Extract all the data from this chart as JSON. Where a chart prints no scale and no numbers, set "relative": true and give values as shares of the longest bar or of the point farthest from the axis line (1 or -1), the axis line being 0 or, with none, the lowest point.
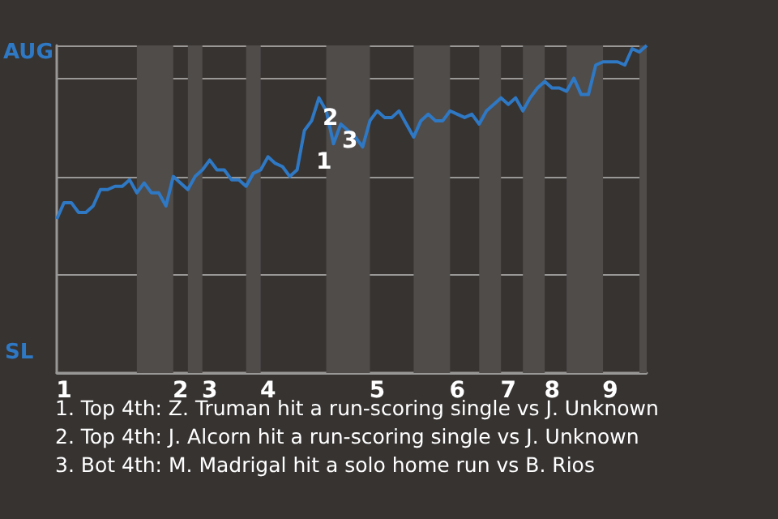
{
  "chart_data": {
    "type": "line",
    "relative": true,
    "categories": [
      null,
      "1",
      null,
      null,
      null,
      null,
      null,
      null,
      null,
      null,
      null,
      null,
      null,
      null,
      null,
      null,
      null,
      "2",
      null,
      null,
      null,
      "3",
      null,
      null,
      null,
      null,
      null,
      null,
      null,
      "4",
      null,
      null,
      null,
      null,
      null,
      null,
      null,
      null,
      null,
      null,
      null,
      null,
      null,
      null,
      "5",
      null,
      null,
      null,
      null,
      null,
      null,
      null,
      null,
      null,
      null,
      "6",
      null,
      null,
      null,
      null,
      null,
      null,
      "7",
      null,
      null,
      null,
      null,
      null,
      "8",
      null,
      null,
      null,
      null,
      null,
      null,
      null,
      "9",
      null,
      null,
      null,
      null,
      null
    ],
    "series": [
      {
        "color": "#2f78c4",
        "values": [
          0.47,
          0.52,
          0.52,
          0.49,
          0.49,
          0.51,
          0.56,
          0.56,
          0.57,
          0.57,
          0.59,
          0.55,
          0.58,
          0.55,
          0.55,
          0.51,
          0.6,
          0.58,
          0.56,
          0.6,
          0.62,
          0.65,
          0.62,
          0.62,
          0.59,
          0.59,
          0.57,
          0.61,
          0.62,
          0.66,
          0.64,
          0.63,
          0.6,
          0.62,
          0.74,
          0.77,
          0.84,
          0.8,
          0.7,
          0.76,
          0.74,
          0.72,
          0.69,
          0.77,
          0.8,
          0.78,
          0.78,
          0.8,
          0.76,
          0.72,
          0.77,
          0.79,
          0.77,
          0.77,
          0.8,
          0.79,
          0.78,
          0.79,
          0.76,
          0.8,
          0.82,
          0.84,
          0.82,
          0.84,
          0.8,
          0.84,
          0.87,
          0.89,
          0.87,
          0.87,
          0.86,
          0.9,
          0.85,
          0.85,
          0.94,
          0.95,
          0.95,
          0.95,
          0.94,
          0.99,
          0.98,
          1
        ]
      }
    ],
    "grid": "y",
    "marker": "none",
    "line_style": "solid",
    "tick_labels": "x",
    "annotations": [
      "AUG",
      "SL",
      "1",
      "2",
      "3",
      "1. Top 4th: Z. Truman hit a run-scoring single vs J. Unknown",
      "2. Top 4th: J. Alcorn hit a run-scoring single vs J. Unknown",
      "3. Bot 4th: M. Madrigal hit a solo home run vs B. Rios"
    ]
  }
}
